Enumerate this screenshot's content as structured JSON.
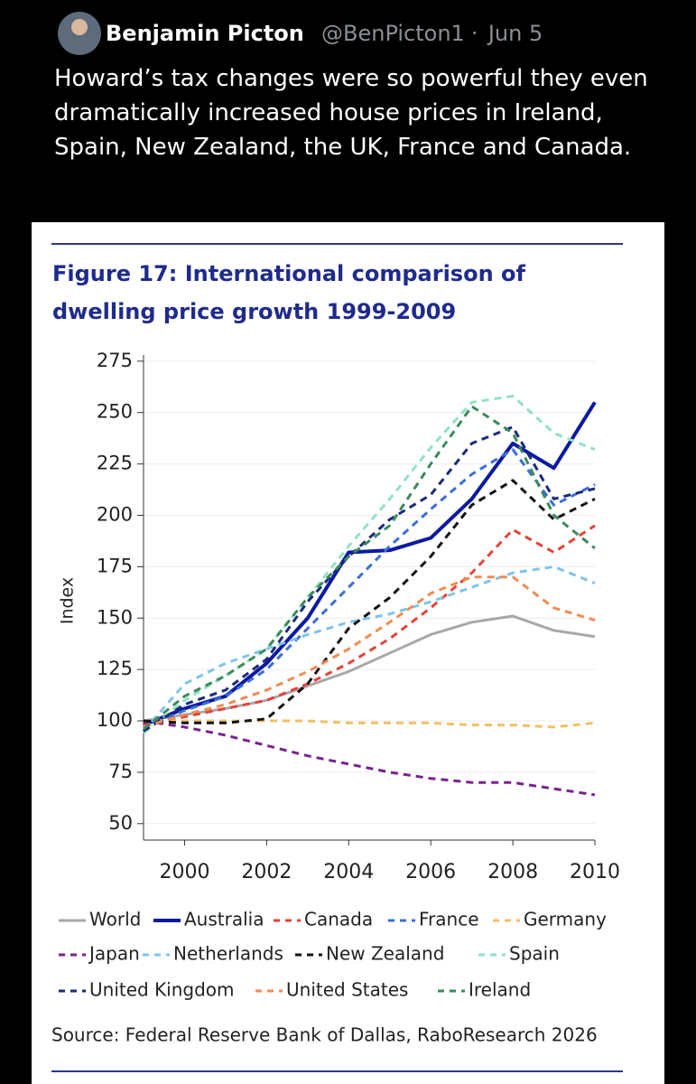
{
  "tweet": {
    "name": "Benjamin Picton",
    "handle": "@BenPicton1",
    "date": "Jun 5",
    "text": "Howard’s tax changes were so powerful they even dramatically increased house prices in Ireland, Spain, New Zealand, the UK, France and Canada."
  },
  "chart_data": {
    "type": "line",
    "title": "Figure 17: International comparison of dwelling price growth 1999-2009",
    "y_label": "Index",
    "source": "Source: Federal Reserve Bank of Dallas, RaboResearch 2026",
    "x": [
      1999,
      2000,
      2001,
      2002,
      2003,
      2004,
      2005,
      2006,
      2007,
      2008,
      2009,
      2010
    ],
    "xlim": [
      1999,
      2010
    ],
    "xticks": [
      2000,
      2002,
      2004,
      2006,
      2008,
      2010
    ],
    "ylim": [
      42,
      278
    ],
    "yticks": [
      50,
      75,
      100,
      125,
      150,
      175,
      200,
      225,
      250,
      275
    ],
    "grid": true,
    "series": [
      {
        "name": "World",
        "color": "#a8a8a8",
        "line_style": "solid",
        "line_width": 3,
        "values": [
          100,
          103,
          106,
          110,
          117,
          124,
          133,
          142,
          148,
          151,
          144,
          141
        ]
      },
      {
        "name": "Australia",
        "color": "#0c1aa0",
        "line_style": "solid",
        "line_width": 4,
        "values": [
          98,
          106,
          112,
          128,
          150,
          182,
          183,
          189,
          208,
          235,
          223,
          255
        ]
      },
      {
        "name": "Canada",
        "color": "#e5433a",
        "line_style": "dashed",
        "line_width": 3,
        "values": [
          98,
          102,
          106,
          110,
          118,
          128,
          140,
          155,
          172,
          193,
          182,
          195
        ]
      },
      {
        "name": "France",
        "color": "#3a6ed8",
        "line_style": "dashed",
        "line_width": 3,
        "values": [
          97,
          105,
          112,
          125,
          145,
          165,
          185,
          203,
          220,
          232,
          205,
          215
        ]
      },
      {
        "name": "Germany",
        "color": "#f1c163",
        "line_style": "dashed",
        "line_width": 3,
        "values": [
          100,
          100,
          100,
          100,
          100,
          99,
          99,
          99,
          98,
          98,
          97,
          99
        ]
      },
      {
        "name": "Japan",
        "color": "#7a2190",
        "line_style": "dashed",
        "line_width": 3,
        "values": [
          100,
          97,
          93,
          88,
          83,
          79,
          75,
          72,
          70,
          70,
          67,
          64
        ]
      },
      {
        "name": "Netherlands",
        "color": "#7fc4ec",
        "line_style": "dashed",
        "line_width": 3,
        "values": [
          95,
          118,
          128,
          135,
          142,
          148,
          152,
          158,
          165,
          172,
          175,
          167
        ]
      },
      {
        "name": "New Zealand",
        "color": "#111111",
        "line_style": "dashed",
        "line_width": 3,
        "values": [
          100,
          99,
          99,
          101,
          118,
          145,
          160,
          180,
          205,
          217,
          198,
          208
        ]
      },
      {
        "name": "Spain",
        "color": "#92e2c4",
        "line_style": "dashed",
        "line_width": 3,
        "values": [
          94,
          110,
          122,
          135,
          160,
          185,
          208,
          233,
          255,
          258,
          240,
          232
        ]
      },
      {
        "name": "United Kingdom",
        "color": "#1b2a7c",
        "line_style": "dashed",
        "line_width": 3,
        "values": [
          95,
          108,
          115,
          130,
          158,
          180,
          198,
          210,
          235,
          243,
          208,
          213
        ]
      },
      {
        "name": "United States",
        "color": "#f08b52",
        "line_style": "dashed",
        "line_width": 3,
        "values": [
          97,
          103,
          108,
          115,
          124,
          135,
          148,
          162,
          170,
          170,
          155,
          149
        ]
      },
      {
        "name": "Ireland",
        "color": "#3b8a5c",
        "line_style": "dashed",
        "line_width": 3,
        "values": [
          96,
          112,
          122,
          135,
          160,
          180,
          195,
          225,
          253,
          240,
          200,
          184
        ]
      }
    ]
  }
}
